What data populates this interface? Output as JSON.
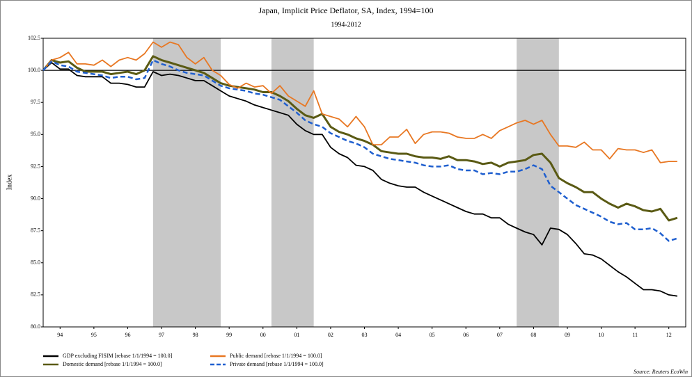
{
  "chart_data": {
    "type": "line",
    "title": "Japan, Implicit Price Deflator, SA, Index, 1994=100",
    "subtitle": "1994-2012",
    "y_label": "Index",
    "source": "Source: Reuters EcoWin",
    "xlim": [
      1994,
      2013
    ],
    "ylim": [
      80,
      102.5
    ],
    "yticks": [
      {
        "value": 80,
        "label": "80.0"
      },
      82.5,
      {
        "value": 85,
        "label": "85.0"
      },
      87.5,
      {
        "value": 90,
        "label": "90.0"
      },
      92.5,
      {
        "value": 95,
        "label": "95.0"
      },
      97.5,
      {
        "value": 100,
        "label": "100.0"
      },
      102.5
    ],
    "xticks": [
      {
        "value": 1994.5,
        "label": "94"
      },
      {
        "value": 1995.5,
        "label": "95"
      },
      {
        "value": 1996.5,
        "label": "96"
      },
      {
        "value": 1997.5,
        "label": "97"
      },
      {
        "value": 1998.5,
        "label": "98"
      },
      {
        "value": 1999.5,
        "label": "99"
      },
      {
        "value": 2000.5,
        "label": "00"
      },
      {
        "value": 2001.5,
        "label": "01"
      },
      {
        "value": 2002.5,
        "label": "02"
      },
      {
        "value": 2003.5,
        "label": "03"
      },
      {
        "value": 2004.5,
        "label": "04"
      },
      {
        "value": 2005.5,
        "label": "05"
      },
      {
        "value": 2006.5,
        "label": "06"
      },
      {
        "value": 2007.5,
        "label": "07"
      },
      {
        "value": 2008.5,
        "label": "08"
      },
      {
        "value": 2009.5,
        "label": "09"
      },
      {
        "value": 2010.5,
        "label": "10"
      },
      {
        "value": 2011.5,
        "label": "11"
      },
      {
        "value": 2012.5,
        "label": "12"
      }
    ],
    "reference_line": 100,
    "shaded_periods": [
      [
        1997.25,
        1999.25
      ],
      [
        2000.75,
        2002.0
      ],
      [
        2008.0,
        2009.25
      ]
    ],
    "x": [
      1994,
      1994.25,
      1994.5,
      1994.75,
      1995,
      1995.25,
      1995.5,
      1995.75,
      1996,
      1996.25,
      1996.5,
      1996.75,
      1997,
      1997.25,
      1997.5,
      1997.75,
      1998,
      1998.25,
      1998.5,
      1998.75,
      1999,
      1999.25,
      1999.5,
      1999.75,
      2000,
      2000.25,
      2000.5,
      2000.75,
      2001,
      2001.25,
      2001.5,
      2001.75,
      2002,
      2002.25,
      2002.5,
      2002.75,
      2003,
      2003.25,
      2003.5,
      2003.75,
      2004,
      2004.25,
      2004.5,
      2004.75,
      2005,
      2005.25,
      2005.5,
      2005.75,
      2006,
      2006.25,
      2006.5,
      2006.75,
      2007,
      2007.25,
      2007.5,
      2007.75,
      2008,
      2008.25,
      2008.5,
      2008.75,
      2009,
      2009.25,
      2009.5,
      2009.75,
      2010,
      2010.25,
      2010.5,
      2010.75,
      2011,
      2011.25,
      2011.5,
      2011.75,
      2012,
      2012.25,
      2012.5,
      2012.75
    ],
    "series": [
      {
        "name": "GDP excluding FISIM [rebase 1/1/1994 = 100.0]",
        "color": "#000000",
        "dash": false,
        "values": [
          100,
          100.6,
          100.1,
          100.1,
          99.6,
          99.5,
          99.5,
          99.5,
          99.0,
          99.0,
          98.9,
          98.7,
          98.7,
          99.9,
          99.6,
          99.7,
          99.6,
          99.4,
          99.2,
          99.2,
          98.8,
          98.4,
          98.0,
          97.8,
          97.6,
          97.3,
          97.1,
          96.9,
          96.7,
          96.5,
          95.8,
          95.3,
          95.0,
          95.0,
          94.0,
          93.5,
          93.2,
          92.6,
          92.5,
          92.2,
          91.5,
          91.2,
          91.0,
          90.9,
          90.9,
          90.5,
          90.2,
          89.9,
          89.6,
          89.3,
          89.0,
          88.8,
          88.8,
          88.5,
          88.5,
          88.0,
          87.7,
          87.4,
          87.2,
          86.4,
          87.7,
          87.6,
          87.2,
          86.5,
          85.7,
          85.6,
          85.3,
          84.8,
          84.3,
          83.9,
          83.4,
          82.9,
          82.9,
          82.8,
          82.5,
          82.4
        ]
      },
      {
        "name": "Domestic demand [rebase 1/1/1994 = 100.0]",
        "color": "#5a5a14",
        "dash": false,
        "values": [
          100,
          100.8,
          100.6,
          100.7,
          100.2,
          99.9,
          99.9,
          99.9,
          99.7,
          99.8,
          99.9,
          99.7,
          100.0,
          101.1,
          100.8,
          100.6,
          100.4,
          100.2,
          100.0,
          99.8,
          99.4,
          99.0,
          98.8,
          98.7,
          98.6,
          98.5,
          98.3,
          98.3,
          98.0,
          97.6,
          97.0,
          96.5,
          96.3,
          96.6,
          95.6,
          95.2,
          95.0,
          94.7,
          94.5,
          94.2,
          93.7,
          93.6,
          93.5,
          93.5,
          93.3,
          93.2,
          93.2,
          93.1,
          93.3,
          93.0,
          93.0,
          92.9,
          92.7,
          92.8,
          92.5,
          92.8,
          92.9,
          93.0,
          93.4,
          93.5,
          92.8,
          91.6,
          91.2,
          90.9,
          90.5,
          90.5,
          90.0,
          89.6,
          89.3,
          89.6,
          89.4,
          89.1,
          89.0,
          89.2,
          88.3,
          88.5
        ]
      },
      {
        "name": "Public demand [rebase 1/1/1994 = 100.0]",
        "color": "#e87722",
        "dash": false,
        "values": [
          100,
          100.8,
          101.0,
          101.4,
          100.5,
          100.5,
          100.4,
          100.8,
          100.3,
          100.8,
          101.0,
          100.8,
          101.3,
          102.2,
          101.8,
          102.2,
          102.0,
          101.0,
          100.5,
          101.0,
          100.0,
          99.6,
          98.9,
          98.6,
          99.0,
          98.7,
          98.8,
          98.2,
          98.8,
          98.0,
          97.6,
          97.2,
          98.4,
          96.6,
          96.4,
          96.2,
          95.6,
          96.4,
          95.6,
          94.2,
          94.2,
          94.8,
          94.8,
          95.4,
          94.3,
          95.0,
          95.2,
          95.2,
          95.1,
          94.8,
          94.7,
          94.7,
          95.0,
          94.7,
          95.3,
          95.6,
          95.9,
          96.1,
          95.8,
          96.1,
          95.0,
          94.1,
          94.1,
          94.0,
          94.4,
          93.8,
          93.8,
          93.1,
          93.9,
          93.8,
          93.8,
          93.6,
          93.8,
          92.8,
          92.9,
          92.9
        ]
      },
      {
        "name": "Private demand [rebase 1/1/1994 = 100.0]",
        "color": "#1f5fcf",
        "dash": true,
        "values": [
          100,
          100.7,
          100.4,
          100.3,
          99.9,
          99.8,
          99.7,
          99.6,
          99.4,
          99.5,
          99.5,
          99.3,
          99.4,
          100.8,
          100.5,
          100.3,
          100.0,
          99.8,
          99.7,
          99.6,
          99.2,
          98.8,
          98.6,
          98.5,
          98.4,
          98.2,
          98.1,
          97.9,
          97.7,
          97.2,
          96.7,
          96.1,
          95.8,
          95.6,
          95.1,
          94.8,
          94.5,
          94.3,
          94.0,
          93.5,
          93.3,
          93.1,
          93.0,
          92.9,
          92.8,
          92.6,
          92.5,
          92.5,
          92.6,
          92.3,
          92.2,
          92.2,
          91.9,
          92.0,
          91.9,
          92.1,
          92.1,
          92.3,
          92.6,
          92.3,
          91.0,
          90.5,
          90.0,
          89.5,
          89.2,
          88.9,
          88.6,
          88.2,
          88.0,
          88.1,
          87.6,
          87.6,
          87.7,
          87.3,
          86.7,
          86.9
        ]
      }
    ]
  }
}
